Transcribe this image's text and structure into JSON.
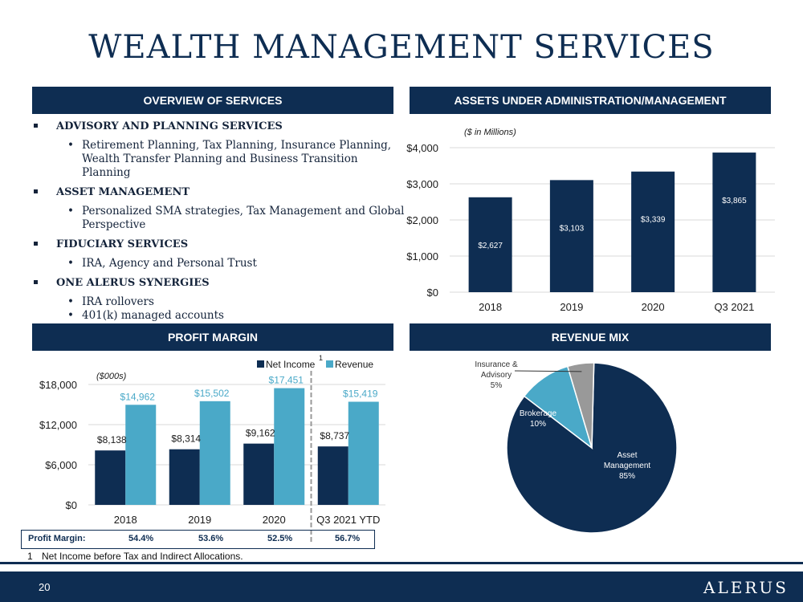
{
  "title": "WEALTH MANAGEMENT SERVICES",
  "headers": {
    "overview": "OVERVIEW OF SERVICES",
    "aum": "ASSETS UNDER ADMINISTRATION/MANAGEMENT",
    "profit": "PROFIT MARGIN",
    "revmix": "REVENUE MIX"
  },
  "overview": {
    "s1": "ADVISORY AND PLANNING SERVICES",
    "s1_i1a": "Retirement Planning, Tax Planning, Insurance Planning,",
    "s1_i1b": "Wealth Transfer Planning and Business Transition Planning",
    "s2": "ASSET MANAGEMENT",
    "s2_i1a": "Personalized SMA strategies, Tax Management and Global",
    "s2_i1b": "Perspective",
    "s3": "FIDUCIARY SERVICES",
    "s3_i1": "IRA, Agency and Personal Trust",
    "s4": "ONE ALERUS SYNERGIES",
    "s4_i1": "IRA rollovers",
    "s4_i2": "401(k) managed accounts",
    "bullet_glyph": "•"
  },
  "chart_data": [
    {
      "type": "bar",
      "subtitle": "($ in Millions)",
      "categories": [
        "2018",
        "2019",
        "2020",
        "Q3 2021"
      ],
      "values": [
        2627,
        3103,
        3339,
        3865
      ],
      "data_labels": [
        "$2,627",
        "$3,103",
        "$3,339",
        "$3,865"
      ],
      "yticks": [
        0,
        1000,
        2000,
        3000,
        4000
      ],
      "ytick_labels": [
        "$0",
        "$1,000",
        "$2,000",
        "$3,000",
        "$4,000"
      ],
      "ylim": [
        0,
        4000
      ],
      "color": "#0e2d52",
      "grid": true
    },
    {
      "type": "bar",
      "subtitle": "($000s)",
      "categories": [
        "2018",
        "2019",
        "2020",
        "Q3 2021 YTD"
      ],
      "series": [
        {
          "name": "Net Income",
          "values": [
            8138,
            8314,
            9162,
            8737
          ],
          "labels": [
            "$8,138",
            "$8,314",
            "$9,162",
            "$8,737"
          ],
          "color": "#0e2d52"
        },
        {
          "name": "Revenue",
          "values": [
            14962,
            15502,
            17451,
            15419
          ],
          "labels": [
            "$14,962",
            "$15,502",
            "$17,451",
            "$15,419"
          ],
          "color": "#4aa9c8"
        }
      ],
      "yticks": [
        0,
        6000,
        12000,
        18000
      ],
      "ytick_labels": [
        "$0",
        "$6,000",
        "$12,000",
        "$18,000"
      ],
      "ylim": [
        0,
        18000
      ],
      "legend": "top",
      "legend_note": "1",
      "grid": true
    },
    {
      "type": "pie",
      "slices": [
        {
          "label": "Asset Management",
          "value": 85,
          "text": [
            "Asset",
            "Management",
            "85%"
          ],
          "color": "#0e2d52"
        },
        {
          "label": "Brokerage",
          "value": 10,
          "text": [
            "Brokerage",
            "10%"
          ],
          "color": "#4aa9c8"
        },
        {
          "label": "Insurance & Advisory",
          "value": 5,
          "text": [
            "Insurance &",
            "Advisory",
            "5%"
          ],
          "color": "#999999"
        }
      ]
    }
  ],
  "profit_margin": {
    "label": "Profit Margin:",
    "values": [
      "54.4%",
      "53.6%",
      "52.5%",
      "56.7%"
    ]
  },
  "footnote": {
    "num": "1",
    "text": "Net Income before Tax and Indirect Allocations."
  },
  "page_number": "20",
  "logo": "ALERUS"
}
